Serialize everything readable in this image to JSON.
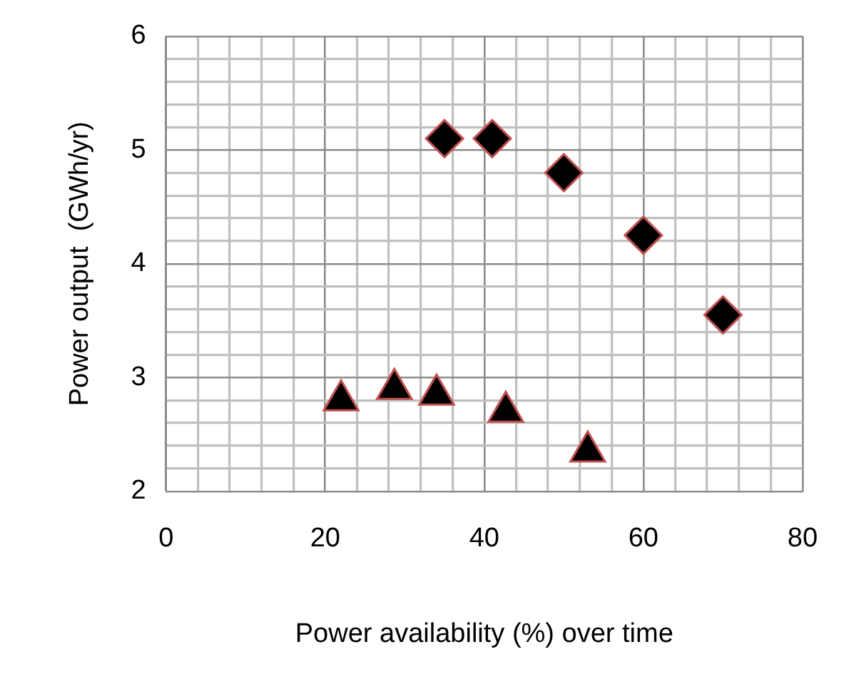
{
  "chart_data": {
    "type": "scatter",
    "xlabel": "Power availability (%) over time",
    "ylabel": "Power output  (GWh/yr)",
    "xlim": [
      0,
      80
    ],
    "ylim": [
      2,
      6
    ],
    "xticks": [
      0,
      {
        "value": 4,
        "label": null
      },
      {
        "value": 8,
        "label": null
      },
      {
        "value": 12,
        "label": null
      },
      {
        "value": 16,
        "label": null
      },
      20,
      {
        "value": 24,
        "label": null
      },
      {
        "value": 28,
        "label": null
      },
      {
        "value": 32,
        "label": null
      },
      {
        "value": 36,
        "label": null
      },
      40,
      {
        "value": 44,
        "label": null
      },
      {
        "value": 48,
        "label": null
      },
      {
        "value": 52,
        "label": null
      },
      {
        "value": 56,
        "label": null
      },
      60,
      {
        "value": 64,
        "label": null
      },
      {
        "value": 68,
        "label": null
      },
      {
        "value": 72,
        "label": null
      },
      {
        "value": 76,
        "label": null
      },
      80
    ],
    "yticks": [
      2,
      {
        "value": 2.2,
        "label": null
      },
      {
        "value": 2.4,
        "label": null
      },
      {
        "value": 2.6,
        "label": null
      },
      {
        "value": 2.8,
        "label": null
      },
      3,
      {
        "value": 3.2,
        "label": null
      },
      {
        "value": 3.4,
        "label": null
      },
      {
        "value": 3.6,
        "label": null
      },
      {
        "value": 3.8,
        "label": null
      },
      4,
      {
        "value": 4.2,
        "label": null
      },
      {
        "value": 4.4,
        "label": null
      },
      {
        "value": 4.6,
        "label": null
      },
      {
        "value": 4.8,
        "label": null
      },
      5,
      {
        "value": 5.2,
        "label": null
      },
      {
        "value": 5.4,
        "label": null
      },
      {
        "value": 5.6,
        "label": null
      },
      {
        "value": 5.8,
        "label": null
      },
      6
    ],
    "grid": true,
    "legend": false,
    "series": [
      {
        "color": "#000000",
        "marker": "diamond",
        "x": [
          35,
          41,
          50,
          60,
          70
        ],
        "values": [
          5.1,
          5.1,
          4.8,
          4.25,
          3.55
        ]
      },
      {
        "color": "#000000",
        "marker": "triangle",
        "x": [
          22,
          28.7,
          34,
          42.7,
          53
        ],
        "values": [
          2.8,
          2.9,
          2.85,
          2.7,
          2.35
        ]
      }
    ]
  }
}
